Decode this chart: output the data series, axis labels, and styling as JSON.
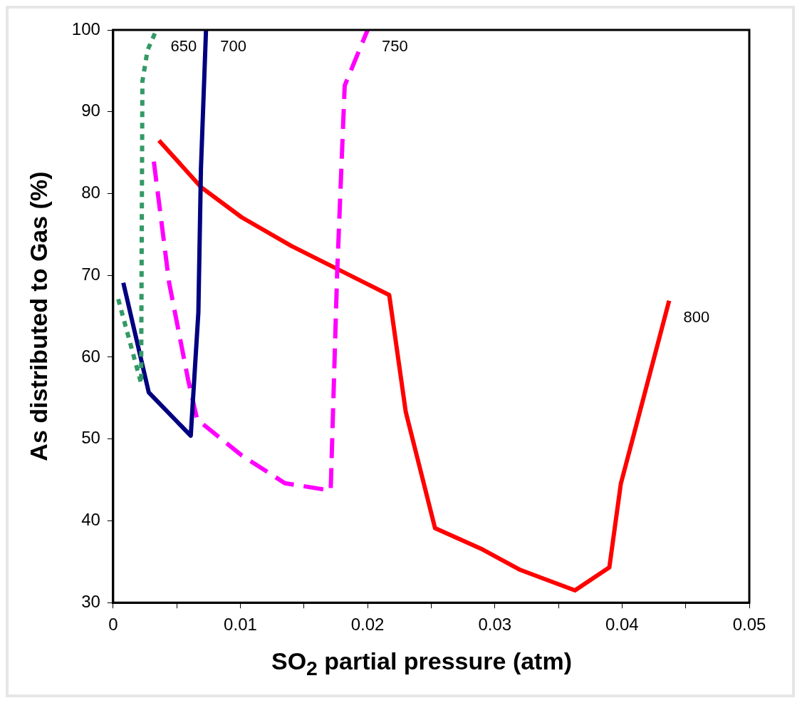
{
  "chart_data": {
    "type": "line",
    "xlabel": "SO$_{2}$ partial pressure (atm)",
    "ylabel": "As distributed to Gas (%)",
    "xlim": [
      0,
      0.05
    ],
    "xticks": [
      0,
      {
        "value": 0.005,
        "label": null
      },
      0.01,
      {
        "value": 0.015,
        "label": null
      },
      0.02,
      {
        "value": 0.025,
        "label": null
      },
      0.03,
      {
        "value": 0.035,
        "label": null
      },
      0.04,
      {
        "value": 0.045,
        "label": null
      },
      0.05
    ],
    "ylim": [
      30,
      100
    ],
    "yticks": [
      30,
      40,
      50,
      60,
      70,
      80,
      90,
      100
    ],
    "grid": false,
    "legend": false,
    "marker": "none",
    "series": [
      {
        "name": "650",
        "color": "#339966",
        "line_style": "dotted",
        "x": [
          0.0004,
          0.0022,
          0.0023,
          0.0027,
          0.0034
        ],
        "values": [
          67.1,
          56.8,
          93.7,
          97.5,
          100
        ]
      },
      {
        "name": "700",
        "color": "#000080",
        "line_style": "solid",
        "x": [
          0.0008,
          0.0028,
          0.0061,
          0.0067,
          0.0069,
          0.0073
        ],
        "values": [
          69.1,
          55.7,
          50.4,
          65.5,
          83.0,
          100
        ]
      },
      {
        "name": "750",
        "color": "#ff00ff",
        "line_style": "dashed",
        "x": [
          0.0032,
          0.0044,
          0.0059,
          0.0066,
          0.0101,
          0.0135,
          0.0171,
          0.0176,
          0.0182,
          0.02
        ],
        "values": [
          83.9,
          69.1,
          57.2,
          52.4,
          48.0,
          44.6,
          43.7,
          70.0,
          93.2,
          100
        ]
      },
      {
        "name": "800",
        "color": "#ff0000",
        "line_style": "solid",
        "x": [
          0.0036,
          0.0069,
          0.0101,
          0.014,
          0.0217,
          0.023,
          0.0253,
          0.0289,
          0.032,
          0.0363,
          0.039,
          0.0399,
          0.0437
        ],
        "values": [
          86.5,
          80.8,
          77.1,
          73.6,
          67.6,
          53.3,
          39.1,
          36.6,
          34.0,
          31.5,
          34.3,
          44.5,
          66.9
        ]
      }
    ]
  }
}
